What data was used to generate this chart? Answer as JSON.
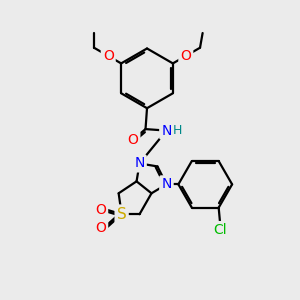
{
  "background_color": "#ebebeb",
  "bond_color": "#000000",
  "bond_width": 1.6,
  "atom_colors": {
    "O": "#ff0000",
    "N": "#0000ff",
    "S": "#ccaa00",
    "Cl": "#00bb00",
    "H": "#008888",
    "C": "#000000"
  },
  "font_size_atom": 10,
  "fig_size": [
    3.0,
    3.0
  ],
  "dpi": 100
}
